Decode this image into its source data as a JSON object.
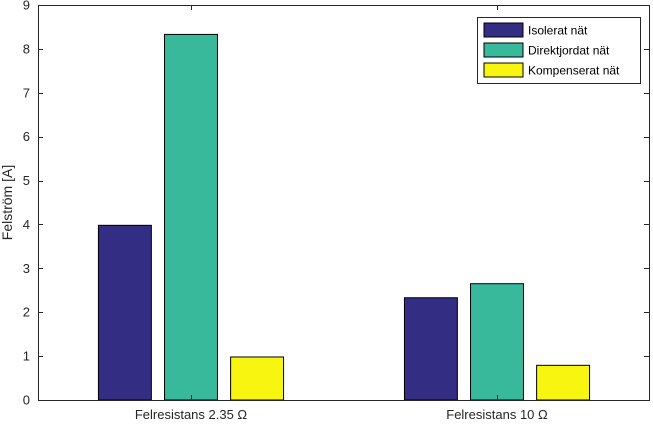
{
  "chart_data": {
    "type": "bar",
    "title": "",
    "xlabel": "",
    "ylabel": "Felström [A]",
    "ylim": [
      0,
      9
    ],
    "yticks": [
      0,
      1,
      2,
      3,
      4,
      5,
      6,
      7,
      8,
      9
    ],
    "categories": [
      "Felresistans 2.35 Ω",
      "Felresistans 10 Ω"
    ],
    "series": [
      {
        "name": "Isolerat nät",
        "color": "#332d84",
        "values": [
          3.98,
          2.33
        ]
      },
      {
        "name": "Direktjordat nät",
        "color": "#38b99c",
        "values": [
          8.33,
          2.65
        ]
      },
      {
        "name": "Kompenserat nät",
        "color": "#f8f510",
        "values": [
          0.98,
          0.79
        ]
      }
    ],
    "grid": false,
    "legend_position": "top-right"
  }
}
